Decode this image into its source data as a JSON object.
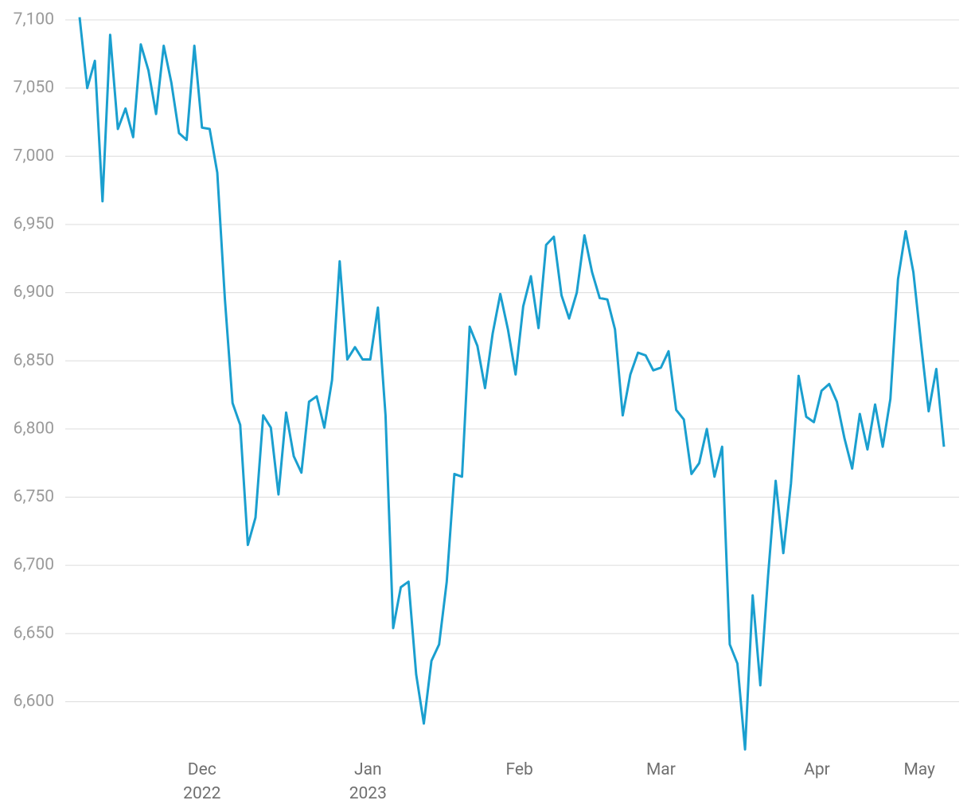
{
  "chart_data": {
    "type": "line",
    "categories": [
      null,
      null,
      null,
      null,
      null,
      null,
      null,
      null,
      null,
      null,
      null,
      null,
      null,
      null,
      null,
      null,
      null,
      null,
      null,
      null,
      null,
      null,
      null,
      null,
      null,
      null,
      null,
      null,
      null,
      null,
      null,
      null,
      null,
      null,
      null,
      null,
      null,
      null,
      null,
      null,
      null,
      null,
      null,
      null,
      null,
      null,
      null,
      null,
      null,
      null,
      null,
      null,
      null,
      null,
      null,
      null,
      null,
      null,
      null,
      null,
      null,
      null,
      null,
      null,
      null,
      null,
      null,
      null,
      null,
      null,
      null,
      null,
      null,
      null,
      null,
      null,
      null,
      null,
      null,
      null,
      null,
      null,
      null,
      null,
      null,
      null,
      null,
      null,
      null,
      null,
      null,
      null,
      null,
      null,
      null,
      null,
      null,
      null,
      null,
      null,
      null,
      null,
      null,
      null,
      null,
      null,
      null,
      null,
      null,
      null,
      null,
      null,
      null,
      null
    ],
    "series": [
      {
        "color": "#1a9fcf",
        "values": [
          7102,
          7050,
          7070,
          6967,
          7089,
          7020,
          7035,
          7014,
          7082,
          7063,
          7031,
          7081,
          7054,
          7017,
          7012,
          7081,
          7021,
          7020,
          6988,
          6895,
          6819,
          6803,
          6715,
          6735,
          6810,
          6801,
          6752,
          6812,
          6780,
          6768,
          6820,
          6824,
          6801,
          6836,
          6923,
          6851,
          6860,
          6851,
          6851,
          6889,
          6810,
          6654,
          6684,
          6688,
          6620,
          6584,
          6630,
          6642,
          6688,
          6767,
          6765,
          6875,
          6861,
          6830,
          6870,
          6899,
          6873,
          6840,
          6890,
          6912,
          6874,
          6935,
          6941,
          6898,
          6881,
          6900,
          6942,
          6915,
          6896,
          6895,
          6873,
          6810,
          6840,
          6856,
          6854,
          6843,
          6845,
          6857,
          6814,
          6807,
          6767,
          6775,
          6800,
          6765,
          6787,
          6642,
          6628,
          6565,
          6678,
          6612,
          6692,
          6762,
          6709,
          6760,
          6839,
          6809,
          6805,
          6828,
          6833,
          6820,
          6793,
          6771,
          6811,
          6785,
          6818,
          6787,
          6822,
          6910,
          6945,
          6915,
          6863,
          6813,
          6844,
          6787
        ]
      }
    ],
    "xticks": [
      {
        "value": 16,
        "label": "Dec\n2022"
      },
      {
        "value": 37.7,
        "label": "Jan\n2023"
      },
      {
        "value": 57.5,
        "label": "Feb"
      },
      {
        "value": 76,
        "label": "Mar"
      },
      {
        "value": 96.4,
        "label": "Apr"
      },
      {
        "value": 109.8,
        "label": "May"
      }
    ],
    "ylim": [
      6560,
      7100
    ],
    "yticks": [
      {
        "value": 6600,
        "label": "6,600"
      },
      {
        "value": 6650,
        "label": "6,650"
      },
      {
        "value": 6700,
        "label": "6,700"
      },
      {
        "value": 6750,
        "label": "6,750"
      },
      {
        "value": 6800,
        "label": "6,800"
      },
      {
        "value": 6850,
        "label": "6,850"
      },
      {
        "value": 6900,
        "label": "6,900"
      },
      {
        "value": 6950,
        "label": "6,950"
      },
      {
        "value": 7000,
        "label": "7,000"
      },
      {
        "value": 7050,
        "label": "7,050"
      },
      {
        "value": 7100,
        "label": "7,100"
      }
    ],
    "grid": true
  }
}
